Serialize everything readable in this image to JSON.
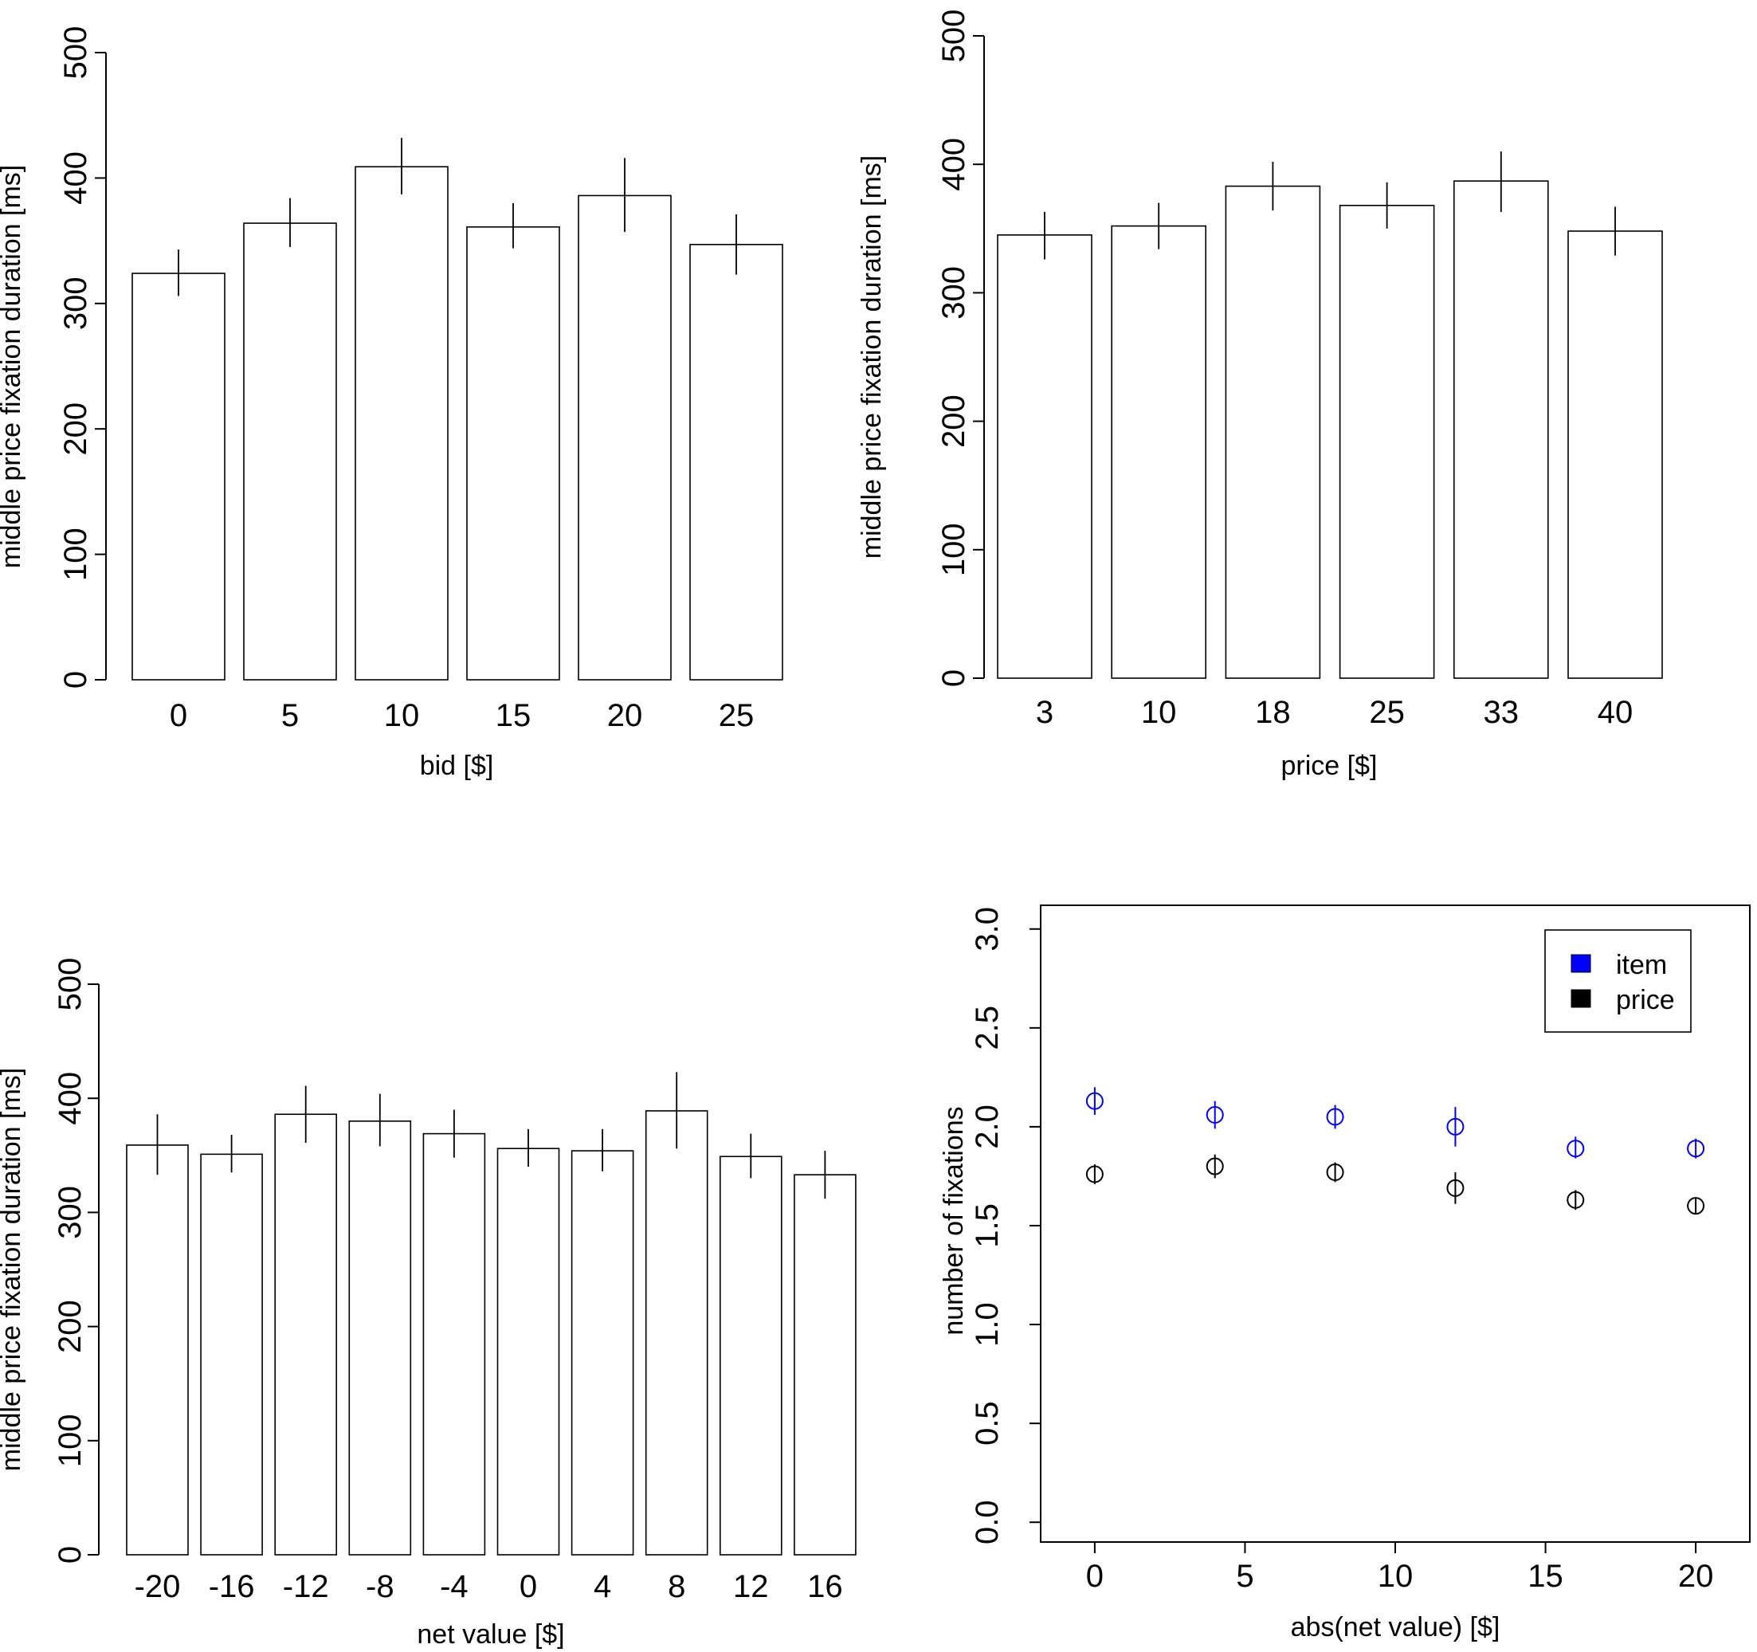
{
  "chart_data": [
    {
      "type": "bar",
      "title": "",
      "xlabel": "bid [$]",
      "ylabel": "middle price fixation duration [ms]",
      "categories": [
        "0",
        "5",
        "10",
        "15",
        "20",
        "25"
      ],
      "values": [
        324,
        364,
        409,
        361,
        386,
        347
      ],
      "error_low": [
        306,
        345,
        387,
        344,
        357,
        323
      ],
      "error_high": [
        343,
        384,
        432,
        380,
        416,
        371
      ],
      "ylim": [
        0,
        500
      ],
      "yticks": [
        "0",
        "100",
        "200",
        "300",
        "400",
        "500"
      ],
      "grid": false
    },
    {
      "type": "bar",
      "title": "",
      "xlabel": "price [$]",
      "ylabel": "middle price fixation duration [ms]",
      "categories": [
        "3",
        "10",
        "18",
        "25",
        "33",
        "40"
      ],
      "values": [
        345,
        352,
        383,
        368,
        387,
        348
      ],
      "error_low": [
        326,
        334,
        364,
        350,
        363,
        329
      ],
      "error_high": [
        363,
        370,
        402,
        386,
        410,
        367
      ],
      "ylim": [
        0,
        500
      ],
      "yticks": [
        "0",
        "100",
        "200",
        "300",
        "400",
        "500"
      ],
      "grid": false
    },
    {
      "type": "bar",
      "title": "",
      "xlabel": "net value [$]",
      "ylabel": "middle price fixation duration [ms]",
      "categories": [
        "-20",
        "-16",
        "-12",
        "-8",
        "-4",
        "0",
        "4",
        "8",
        "12",
        "16"
      ],
      "values": [
        359,
        351,
        386,
        380,
        369,
        356,
        354,
        389,
        349,
        333
      ],
      "error_low": [
        333,
        335,
        361,
        358,
        348,
        340,
        336,
        356,
        330,
        312
      ],
      "error_high": [
        386,
        368,
        411,
        404,
        390,
        373,
        373,
        423,
        369,
        354
      ],
      "ylim": [
        0,
        500
      ],
      "yticks": [
        "0",
        "100",
        "200",
        "300",
        "400",
        "500"
      ],
      "grid": false
    },
    {
      "type": "scatter",
      "title": "",
      "xlabel": "abs(net value) [$]",
      "ylabel": "number of fixations",
      "xticks": [
        "0",
        "5",
        "10",
        "15",
        "20"
      ],
      "yticks": [
        "0.0",
        "0.5",
        "1.0",
        "1.5",
        "2.0",
        "2.5",
        "3.0"
      ],
      "xlim": [
        -1.8,
        21.8
      ],
      "ylim": [
        -0.1,
        3.12
      ],
      "legend_position": "top-right",
      "series": [
        {
          "name": "item",
          "color": "#0000ff",
          "x": [
            0,
            4,
            8,
            12,
            16,
            20
          ],
          "y": [
            2.13,
            2.06,
            2.05,
            2.0,
            1.89,
            1.89
          ],
          "error_low": [
            2.06,
            1.99,
            1.99,
            1.9,
            1.84,
            1.84
          ],
          "error_high": [
            2.2,
            2.13,
            2.11,
            2.1,
            1.95,
            1.94
          ]
        },
        {
          "name": "price",
          "color": "#000000",
          "x": [
            0,
            4,
            8,
            12,
            16,
            20
          ],
          "y": [
            1.76,
            1.8,
            1.77,
            1.69,
            1.63,
            1.6
          ],
          "error_low": [
            1.71,
            1.74,
            1.72,
            1.61,
            1.58,
            1.56
          ],
          "error_high": [
            1.81,
            1.86,
            1.82,
            1.77,
            1.68,
            1.64
          ]
        }
      ]
    }
  ]
}
